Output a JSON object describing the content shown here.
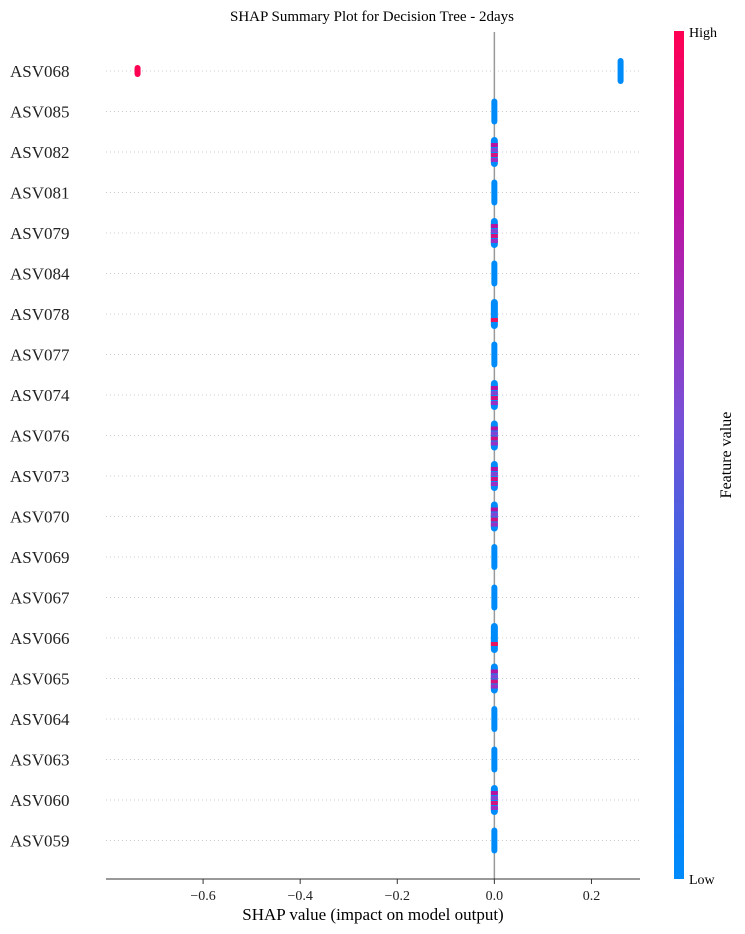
{
  "chart_data": {
    "type": "scatter",
    "title": "SHAP Summary Plot for Decision Tree - 2days",
    "xlabel": "SHAP value (impact on model output)",
    "xlim": [
      -0.8,
      0.3
    ],
    "xticks": [
      {
        "value": -0.6,
        "label": "−0.6"
      },
      {
        "value": -0.4,
        "label": "−0.4"
      },
      {
        "value": -0.2,
        "label": "−0.2"
      },
      {
        "value": 0.0,
        "label": "0.0"
      },
      {
        "value": 0.2,
        "label": "0.2"
      }
    ],
    "grid": false,
    "features": [
      {
        "name": "ASV068",
        "clusters": [
          {
            "x": -0.735,
            "color": "high"
          },
          {
            "x": 0.26,
            "color": "low"
          }
        ]
      },
      {
        "name": "ASV085",
        "clusters": [
          {
            "x": 0.0,
            "color": "low"
          }
        ]
      },
      {
        "name": "ASV082",
        "clusters": [
          {
            "x": 0.0,
            "color": "mixed"
          }
        ]
      },
      {
        "name": "ASV081",
        "clusters": [
          {
            "x": 0.0,
            "color": "low"
          }
        ]
      },
      {
        "name": "ASV079",
        "clusters": [
          {
            "x": 0.0,
            "color": "mixed"
          }
        ]
      },
      {
        "name": "ASV084",
        "clusters": [
          {
            "x": 0.0,
            "color": "low"
          }
        ]
      },
      {
        "name": "ASV078",
        "clusters": [
          {
            "x": 0.0,
            "color": "low_with_high"
          }
        ]
      },
      {
        "name": "ASV077",
        "clusters": [
          {
            "x": 0.0,
            "color": "low"
          }
        ]
      },
      {
        "name": "ASV074",
        "clusters": [
          {
            "x": 0.0,
            "color": "mixed"
          }
        ]
      },
      {
        "name": "ASV076",
        "clusters": [
          {
            "x": 0.0,
            "color": "mixed"
          }
        ]
      },
      {
        "name": "ASV073",
        "clusters": [
          {
            "x": 0.0,
            "color": "mixed"
          }
        ]
      },
      {
        "name": "ASV070",
        "clusters": [
          {
            "x": 0.0,
            "color": "mixed"
          }
        ]
      },
      {
        "name": "ASV069",
        "clusters": [
          {
            "x": 0.0,
            "color": "low"
          }
        ]
      },
      {
        "name": "ASV067",
        "clusters": [
          {
            "x": 0.0,
            "color": "low"
          }
        ]
      },
      {
        "name": "ASV066",
        "clusters": [
          {
            "x": 0.0,
            "color": "low_with_high"
          }
        ]
      },
      {
        "name": "ASV065",
        "clusters": [
          {
            "x": 0.0,
            "color": "mixed"
          }
        ]
      },
      {
        "name": "ASV064",
        "clusters": [
          {
            "x": 0.0,
            "color": "low"
          }
        ]
      },
      {
        "name": "ASV063",
        "clusters": [
          {
            "x": 0.0,
            "color": "low"
          }
        ]
      },
      {
        "name": "ASV060",
        "clusters": [
          {
            "x": 0.0,
            "color": "mixed"
          }
        ]
      },
      {
        "name": "ASV059",
        "clusters": [
          {
            "x": 0.0,
            "color": "low"
          }
        ]
      }
    ],
    "colorbar": {
      "label": "Feature value",
      "high_label": "High",
      "low_label": "Low",
      "high_color": "#ff0052",
      "mid_color": "#8a3fcf",
      "low_color": "#008bfb"
    }
  }
}
